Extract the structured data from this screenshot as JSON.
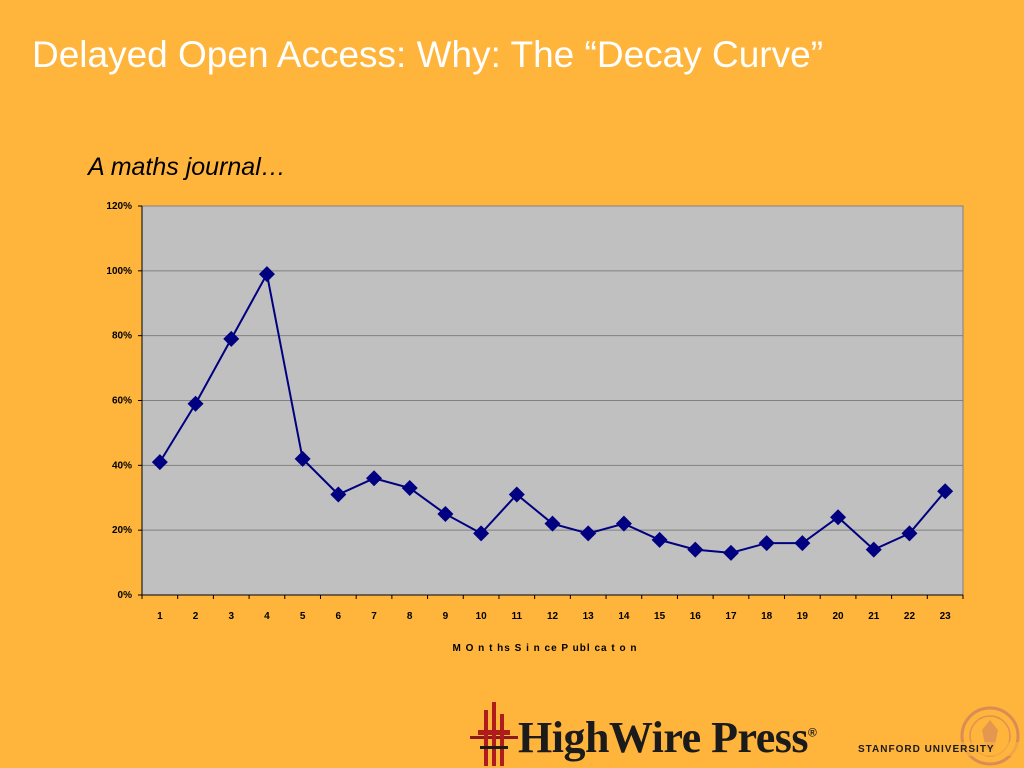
{
  "slide": {
    "title": "Delayed Open Access:  Why: The “Decay Curve”",
    "subtitle": "A maths journal…"
  },
  "chart_data": {
    "type": "line",
    "xlabel": "M O n t hs  S i n ce  P ubl ca t  o n",
    "ylabel": "",
    "categories": [
      "1",
      "2",
      "3",
      "4",
      "5",
      "6",
      "7",
      "8",
      "9",
      "10",
      "11",
      "12",
      "13",
      "14",
      "15",
      "16",
      "17",
      "18",
      "19",
      "20",
      "21",
      "22",
      "23"
    ],
    "series": [
      {
        "values": [
          41,
          59,
          79,
          99,
          42,
          31,
          36,
          33,
          25,
          19,
          31,
          22,
          19,
          22,
          17,
          14,
          13,
          16,
          16,
          24,
          14,
          19,
          32
        ]
      }
    ],
    "ylim": [
      0,
      120
    ],
    "yticks": [
      0,
      20,
      40,
      60,
      80,
      100,
      120
    ],
    "ytick_labels": [
      "0%",
      "20%",
      "40%",
      "60%",
      "80%",
      "100%",
      "120%"
    ],
    "grid": true,
    "legend": "none",
    "colors": {
      "plot_background": "#C0C0C0",
      "line": "#000080",
      "marker": "#000080",
      "grid": "#808080"
    }
  },
  "logo": {
    "name": "HighWire Press",
    "registered": "®",
    "affiliation": "STANFORD UNIVERSITY"
  }
}
